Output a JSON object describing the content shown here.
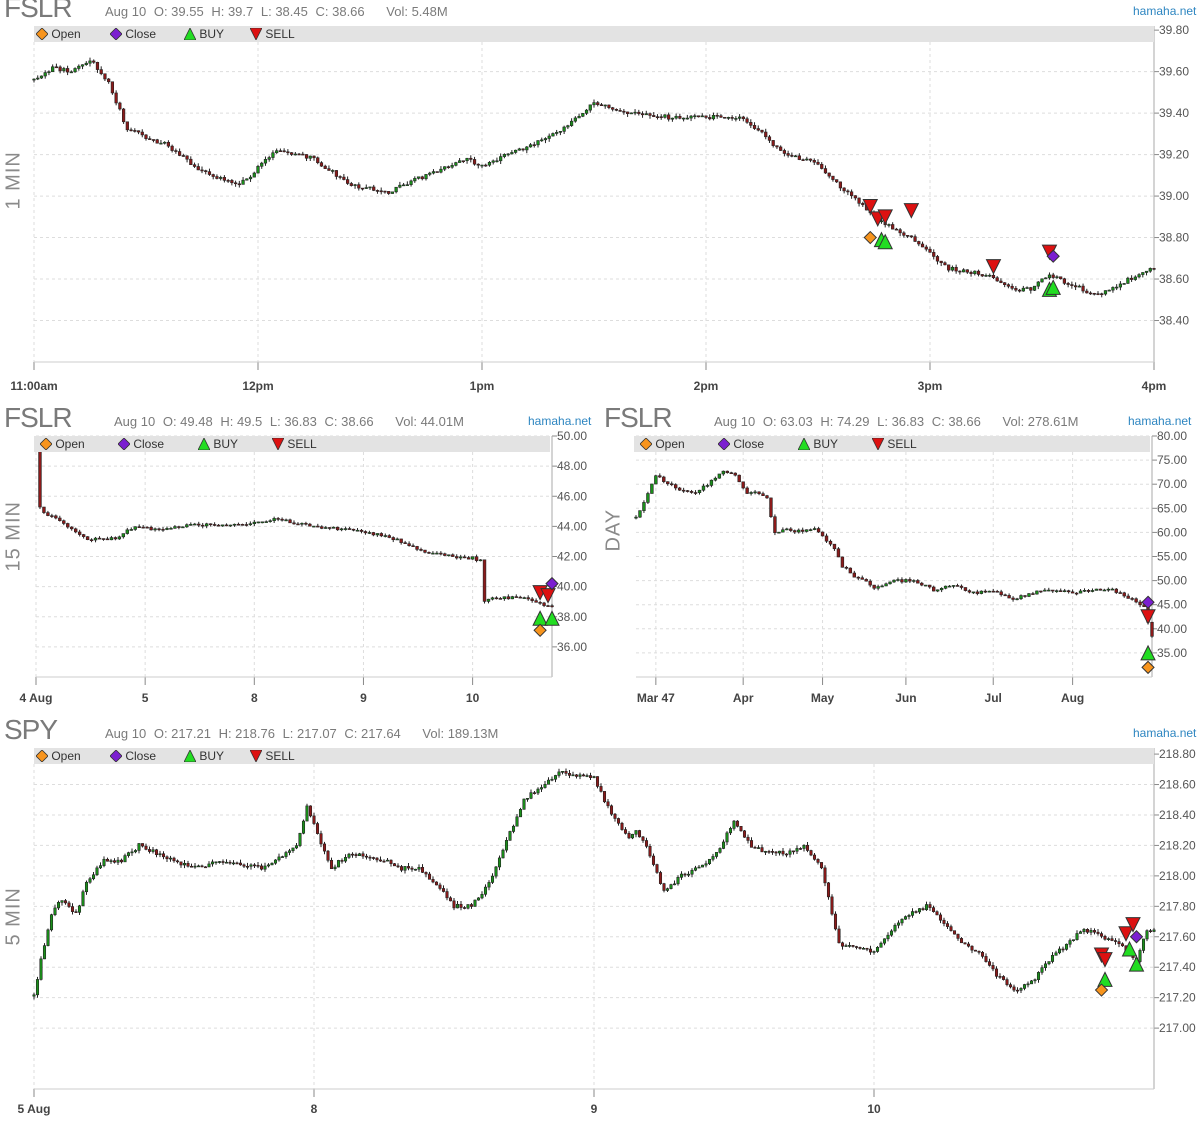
{
  "brand": "hamaha.net",
  "legend": {
    "open": "Open",
    "close": "Close",
    "buy": "BUY",
    "sell": "SELL",
    "colors": {
      "open": "#f7941d",
      "close": "#7b1fd0",
      "buy": "#22dd22",
      "sell": "#dd1111"
    }
  },
  "colors": {
    "up": "#1a8f1a",
    "down": "#8b1a1a",
    "grid": "#dddddd"
  },
  "panels": [
    {
      "id": "p1",
      "symbol": "FSLR",
      "timeframe": "1 MIN",
      "info": {
        "date": "Aug 10",
        "o": "O: 39.55",
        "h": "H: 39.7",
        "l": "L: 38.45",
        "c": "C: 38.66",
        "vol": "Vol: 5.48M"
      },
      "yticks": [
        "39.80",
        "39.60",
        "39.40",
        "39.20",
        "39.00",
        "38.80",
        "38.60",
        "38.40"
      ],
      "xticks": [
        "11:00am",
        "12pm",
        "1pm",
        "2pm",
        "3pm",
        "4pm"
      ]
    },
    {
      "id": "p2",
      "symbol": "FSLR",
      "timeframe": "15 MIN",
      "info": {
        "date": "Aug 10",
        "o": "O: 49.48",
        "h": "H: 49.5",
        "l": "L: 36.83",
        "c": "C: 38.66",
        "vol": "Vol: 44.01M"
      },
      "yticks": [
        "50.00",
        "48.00",
        "46.00",
        "44.00",
        "42.00",
        "40.00",
        "38.00",
        "36.00"
      ],
      "xticks": [
        "4 Aug",
        "5",
        "8",
        "9",
        "10"
      ]
    },
    {
      "id": "p3",
      "symbol": "FSLR",
      "timeframe": "DAY",
      "info": {
        "date": "Aug 10",
        "o": "O: 63.03",
        "h": "H: 74.29",
        "l": "L: 36.83",
        "c": "C: 38.66",
        "vol": "Vol: 278.61M"
      },
      "yticks": [
        "80.00",
        "75.00",
        "70.00",
        "65.00",
        "60.00",
        "55.00",
        "50.00",
        "45.00",
        "40.00",
        "35.00"
      ],
      "xticks": [
        "Mar 47",
        "Apr",
        "May",
        "Jun",
        "Jul",
        "Aug"
      ]
    },
    {
      "id": "p4",
      "symbol": "SPY",
      "timeframe": "5 MIN",
      "info": {
        "date": "Aug 10",
        "o": "O: 217.21",
        "h": "H: 218.76",
        "l": "L: 217.07",
        "c": "C: 217.64",
        "vol": "Vol: 189.13M"
      },
      "yticks": [
        "218.80",
        "218.60",
        "218.40",
        "218.20",
        "218.00",
        "217.80",
        "217.60",
        "217.40",
        "217.20",
        "217.00"
      ],
      "xticks": [
        "5 Aug",
        "8",
        "9",
        "10"
      ]
    }
  ],
  "chart_data": [
    {
      "type": "candlestick",
      "symbol": "FSLR",
      "timeframe": "1 MIN",
      "ylim": [
        38.2,
        39.82
      ],
      "grid": true,
      "legend_placement": "top-left",
      "x_labels": [
        "11:00am",
        "12pm",
        "1pm",
        "2pm",
        "3pm",
        "4pm"
      ],
      "x_domain": [
        0,
        300
      ],
      "price_path": {
        "x": [
          0,
          5,
          10,
          15,
          20,
          25,
          35,
          45,
          55,
          65,
          75,
          85,
          95,
          105,
          115,
          120,
          130,
          140,
          150,
          160,
          170,
          175,
          190,
          200,
          210,
          217,
          225,
          235,
          245,
          255,
          262,
          267,
          272,
          277,
          285,
          300
        ],
        "y": [
          39.56,
          39.62,
          39.6,
          39.66,
          39.55,
          39.32,
          39.25,
          39.12,
          39.05,
          39.22,
          39.18,
          39.05,
          39.02,
          39.1,
          39.18,
          39.15,
          39.22,
          39.3,
          39.45,
          39.4,
          39.38,
          39.38,
          39.38,
          39.22,
          39.15,
          39.03,
          38.9,
          38.8,
          38.65,
          38.62,
          38.55,
          38.55,
          38.62,
          38.58,
          38.52,
          38.66
        ]
      },
      "markers": [
        {
          "kind": "sell",
          "x": 224,
          "y": 38.95
        },
        {
          "kind": "sell",
          "x": 226,
          "y": 38.89
        },
        {
          "kind": "sell",
          "x": 228,
          "y": 38.9
        },
        {
          "kind": "sell",
          "x": 235,
          "y": 38.93
        },
        {
          "kind": "open",
          "x": 224,
          "y": 38.8
        },
        {
          "kind": "buy",
          "x": 227,
          "y": 38.79
        },
        {
          "kind": "buy",
          "x": 228,
          "y": 38.78
        },
        {
          "kind": "sell",
          "x": 257,
          "y": 38.66
        },
        {
          "kind": "sell",
          "x": 272,
          "y": 38.73
        },
        {
          "kind": "close",
          "x": 273,
          "y": 38.71
        },
        {
          "kind": "buy",
          "x": 272,
          "y": 38.55
        },
        {
          "kind": "buy",
          "x": 273,
          "y": 38.56
        }
      ]
    },
    {
      "type": "candlestick",
      "symbol": "FSLR",
      "timeframe": "15 MIN",
      "ylim": [
        34.0,
        50.0
      ],
      "grid": true,
      "legend_placement": "top-left",
      "x_labels": [
        "4 Aug",
        "5",
        "8",
        "9",
        "10"
      ],
      "x_domain": [
        0,
        130
      ],
      "price_path": {
        "x": [
          0,
          1,
          3,
          8,
          13,
          20,
          25,
          30,
          40,
          50,
          55,
          60,
          70,
          80,
          85,
          90,
          95,
          100,
          105,
          110,
          112,
          113,
          114,
          120,
          125,
          128,
          130
        ],
        "y": [
          49.48,
          45.2,
          44.8,
          44.0,
          43.1,
          43.2,
          44.0,
          43.8,
          44.1,
          44.1,
          44.2,
          44.5,
          44.0,
          43.7,
          43.5,
          43.2,
          42.6,
          42.2,
          42.0,
          41.9,
          41.7,
          39.0,
          39.2,
          39.3,
          39.1,
          38.8,
          38.66
        ]
      },
      "markers": [
        {
          "kind": "sell",
          "x": 127,
          "y": 39.6
        },
        {
          "kind": "sell",
          "x": 129,
          "y": 39.4
        },
        {
          "kind": "close",
          "x": 130,
          "y": 40.2
        },
        {
          "kind": "buy",
          "x": 127,
          "y": 37.9
        },
        {
          "kind": "buy",
          "x": 130,
          "y": 37.9
        },
        {
          "kind": "open",
          "x": 127,
          "y": 37.1
        }
      ]
    },
    {
      "type": "candlestick",
      "symbol": "FSLR",
      "timeframe": "DAY",
      "ylim": [
        30.0,
        80.0
      ],
      "grid": true,
      "legend_placement": "top-left",
      "x_labels": [
        "Mar 47",
        "Apr",
        "May",
        "Jun",
        "Jul",
        "Aug"
      ],
      "x_domain": [
        0,
        130
      ],
      "price_path": {
        "x": [
          0,
          2,
          5,
          8,
          12,
          15,
          18,
          22,
          25,
          28,
          30,
          33,
          35,
          38,
          40,
          45,
          50,
          52,
          55,
          58,
          60,
          65,
          70,
          75,
          80,
          85,
          90,
          95,
          100,
          105,
          110,
          115,
          120,
          125,
          128,
          130
        ],
        "y": [
          63.0,
          66.0,
          72.0,
          70.0,
          68.5,
          68.0,
          70.0,
          73.0,
          72.0,
          68.0,
          68.5,
          67.0,
          60.0,
          61.0,
          60.0,
          61.0,
          56.5,
          53.0,
          51.0,
          50.0,
          48.5,
          50.0,
          50.0,
          48.0,
          49.0,
          47.5,
          48.0,
          46.0,
          47.5,
          48.0,
          47.5,
          48.0,
          48.0,
          46.0,
          44.5,
          38.66
        ]
      },
      "markers": [
        {
          "kind": "close",
          "x": 129,
          "y": 45.5
        },
        {
          "kind": "sell",
          "x": 129,
          "y": 42.5
        },
        {
          "kind": "buy",
          "x": 129,
          "y": 35.0
        },
        {
          "kind": "open",
          "x": 129,
          "y": 32.0
        }
      ]
    },
    {
      "type": "candlestick",
      "symbol": "SPY",
      "timeframe": "5 MIN",
      "ylim": [
        216.6,
        218.84
      ],
      "grid": true,
      "legend_placement": "top-left",
      "x_labels": [
        "5 Aug",
        "8",
        "9",
        "10"
      ],
      "x_domain": [
        0,
        320
      ],
      "price_path": {
        "x": [
          0,
          2,
          5,
          8,
          12,
          15,
          20,
          25,
          30,
          35,
          45,
          55,
          65,
          75,
          78,
          80,
          82,
          85,
          90,
          100,
          105,
          110,
          115,
          120,
          125,
          130,
          140,
          150,
          160,
          165,
          170,
          172,
          175,
          180,
          185,
          190,
          195,
          200,
          205,
          210,
          215,
          220,
          225,
          230,
          240,
          245,
          250,
          255,
          260,
          265,
          270,
          275,
          280,
          285,
          290,
          295,
          300,
          305,
          310,
          315,
          318,
          320
        ],
        "y": [
          217.21,
          217.45,
          217.75,
          217.85,
          217.75,
          217.95,
          218.1,
          218.1,
          218.2,
          218.15,
          218.05,
          218.1,
          218.05,
          218.2,
          218.45,
          218.35,
          218.2,
          218.05,
          218.15,
          218.1,
          218.05,
          218.05,
          217.95,
          217.8,
          217.8,
          217.95,
          218.5,
          218.68,
          218.65,
          218.4,
          218.25,
          218.3,
          218.2,
          217.9,
          218.0,
          218.05,
          218.15,
          218.35,
          218.2,
          218.15,
          218.15,
          218.2,
          218.05,
          217.55,
          217.5,
          217.65,
          217.75,
          217.8,
          217.7,
          217.55,
          217.5,
          217.35,
          217.25,
          217.3,
          217.45,
          217.55,
          217.65,
          217.6,
          217.55,
          217.45,
          217.64,
          217.64
        ]
      },
      "markers": [
        {
          "kind": "sell",
          "x": 305,
          "y": 217.48
        },
        {
          "kind": "sell",
          "x": 306,
          "y": 217.45
        },
        {
          "kind": "buy",
          "x": 306,
          "y": 217.32
        },
        {
          "kind": "open",
          "x": 305,
          "y": 217.25
        },
        {
          "kind": "sell",
          "x": 312,
          "y": 217.62
        },
        {
          "kind": "sell",
          "x": 314,
          "y": 217.68
        },
        {
          "kind": "close",
          "x": 315,
          "y": 217.6
        },
        {
          "kind": "buy",
          "x": 313,
          "y": 217.52
        },
        {
          "kind": "buy",
          "x": 315,
          "y": 217.42
        }
      ]
    }
  ]
}
